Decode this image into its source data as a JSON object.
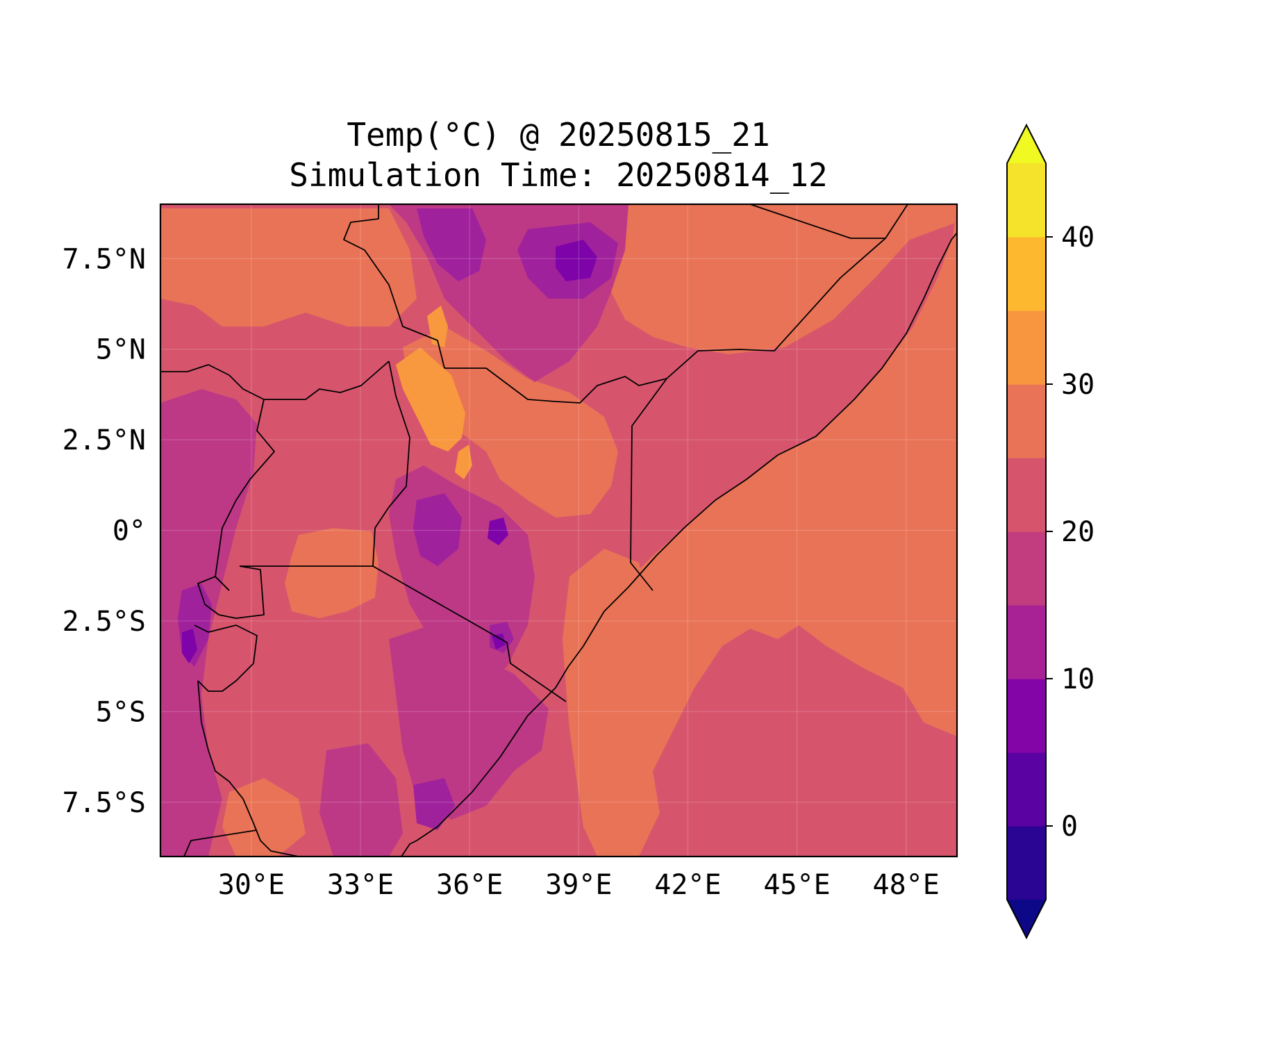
{
  "title": {
    "line1": "Temp(°C) @ 20250815_21",
    "line2": "Simulation Time: 20250814_12"
  },
  "map": {
    "extent": {
      "lon": [
        27.5,
        49.4
      ],
      "lat": [
        -9,
        9
      ]
    },
    "lon_ticks": [
      {
        "value": 30,
        "label": "30°E"
      },
      {
        "value": 33,
        "label": "33°E"
      },
      {
        "value": 36,
        "label": "36°E"
      },
      {
        "value": 39,
        "label": "39°E"
      },
      {
        "value": 42,
        "label": "42°E"
      },
      {
        "value": 45,
        "label": "45°E"
      },
      {
        "value": 48,
        "label": "48°E"
      }
    ],
    "lat_ticks": [
      {
        "value": 7.5,
        "label": "7.5°N"
      },
      {
        "value": 5,
        "label": "5°N"
      },
      {
        "value": 2.5,
        "label": "2.5°N"
      },
      {
        "value": 0,
        "label": "0°"
      },
      {
        "value": -2.5,
        "label": "2.5°S"
      },
      {
        "value": -5,
        "label": "5°S"
      },
      {
        "value": -7.5,
        "label": "7.5°S"
      }
    ],
    "gridlines": true,
    "colors": {
      "bg": "#d6556d",
      "warm": "#e97357",
      "hot": "#f8983f",
      "cool": "#bd3986",
      "cold": "#a0219c",
      "coldest": "#7e03a8"
    }
  },
  "colorbar": {
    "levels": [
      -5,
      0,
      5,
      10,
      15,
      20,
      25,
      30,
      35,
      40,
      45
    ],
    "colors": [
      "#2a0594",
      "#5b02a3",
      "#8405a7",
      "#a82296",
      "#c13d80",
      "#d6556d",
      "#e97357",
      "#f8963f",
      "#fdb82f",
      "#f4e22b"
    ],
    "under_color": "#0d0887",
    "over_color": "#f0f921",
    "extend": "both",
    "ticks": [
      {
        "value": 0,
        "label": "0"
      },
      {
        "value": 10,
        "label": "10"
      },
      {
        "value": 20,
        "label": "20"
      },
      {
        "value": 30,
        "label": "30"
      },
      {
        "value": 40,
        "label": "40"
      }
    ]
  }
}
